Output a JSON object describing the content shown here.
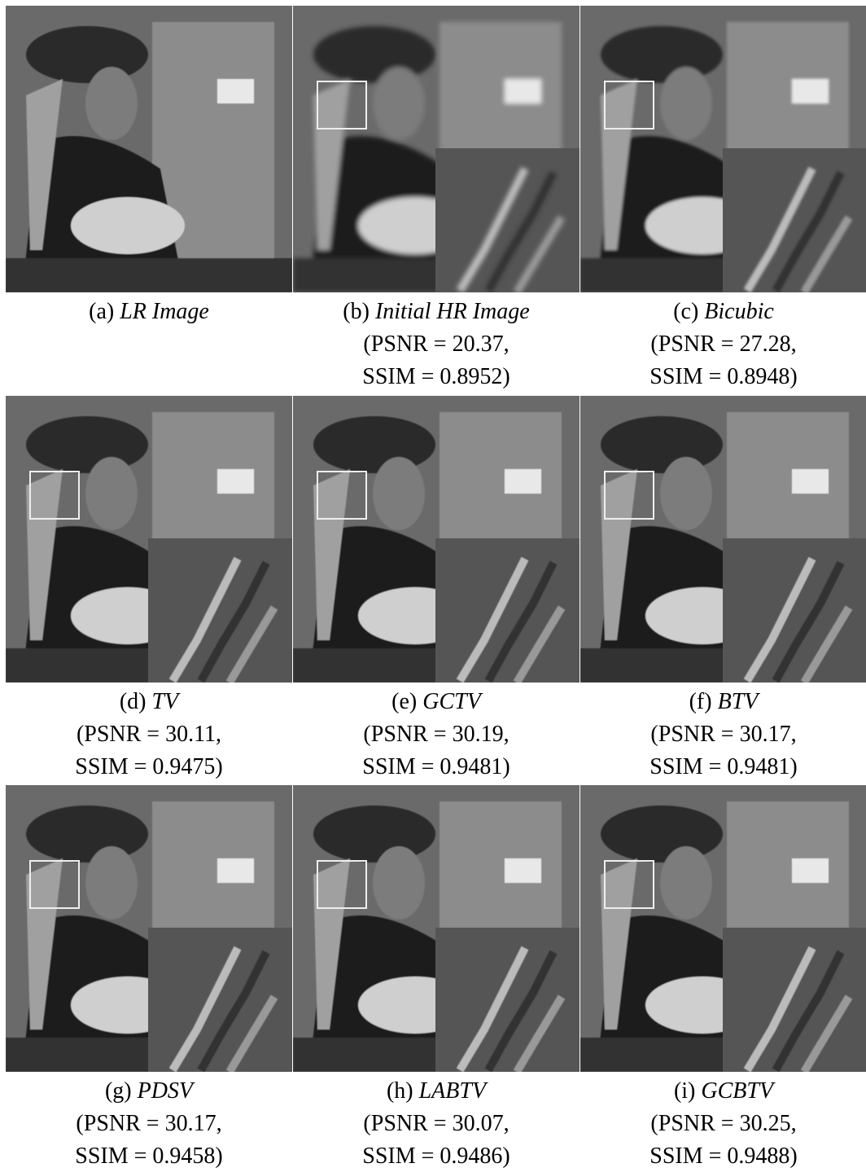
{
  "panels": [
    {
      "label": "(a)",
      "name": "LR Image",
      "metrics": []
    },
    {
      "label": "(b)",
      "name": "Initial HR Image",
      "metrics": [
        "(PSNR = 20.37,",
        "SSIM = 0.8952)"
      ]
    },
    {
      "label": "(c)",
      "name": "Bicubic",
      "metrics": [
        "(PSNR = 27.28,",
        "SSIM = 0.8948)"
      ]
    },
    {
      "label": "(d)",
      "name": "TV",
      "metrics": [
        "(PSNR = 30.11,",
        "SSIM = 0.9475)"
      ]
    },
    {
      "label": "(e)",
      "name": "GCTV",
      "metrics": [
        "(PSNR = 30.19,",
        "SSIM = 0.9481)"
      ]
    },
    {
      "label": "(f)",
      "name": "BTV",
      "metrics": [
        "(PSNR = 30.17,",
        "SSIM = 0.9481)"
      ]
    },
    {
      "label": "(g)",
      "name": "PDSV",
      "metrics": [
        "(PSNR = 30.17,",
        "SSIM = 0.9458)"
      ]
    },
    {
      "label": "(h)",
      "name": "LABTV",
      "metrics": [
        "(PSNR = 30.07,",
        "SSIM = 0.9486)"
      ]
    },
    {
      "label": "(i)",
      "name": "GCBTV",
      "metrics": [
        "(PSNR = 30.25,",
        "SSIM = 0.9488)"
      ]
    }
  ]
}
